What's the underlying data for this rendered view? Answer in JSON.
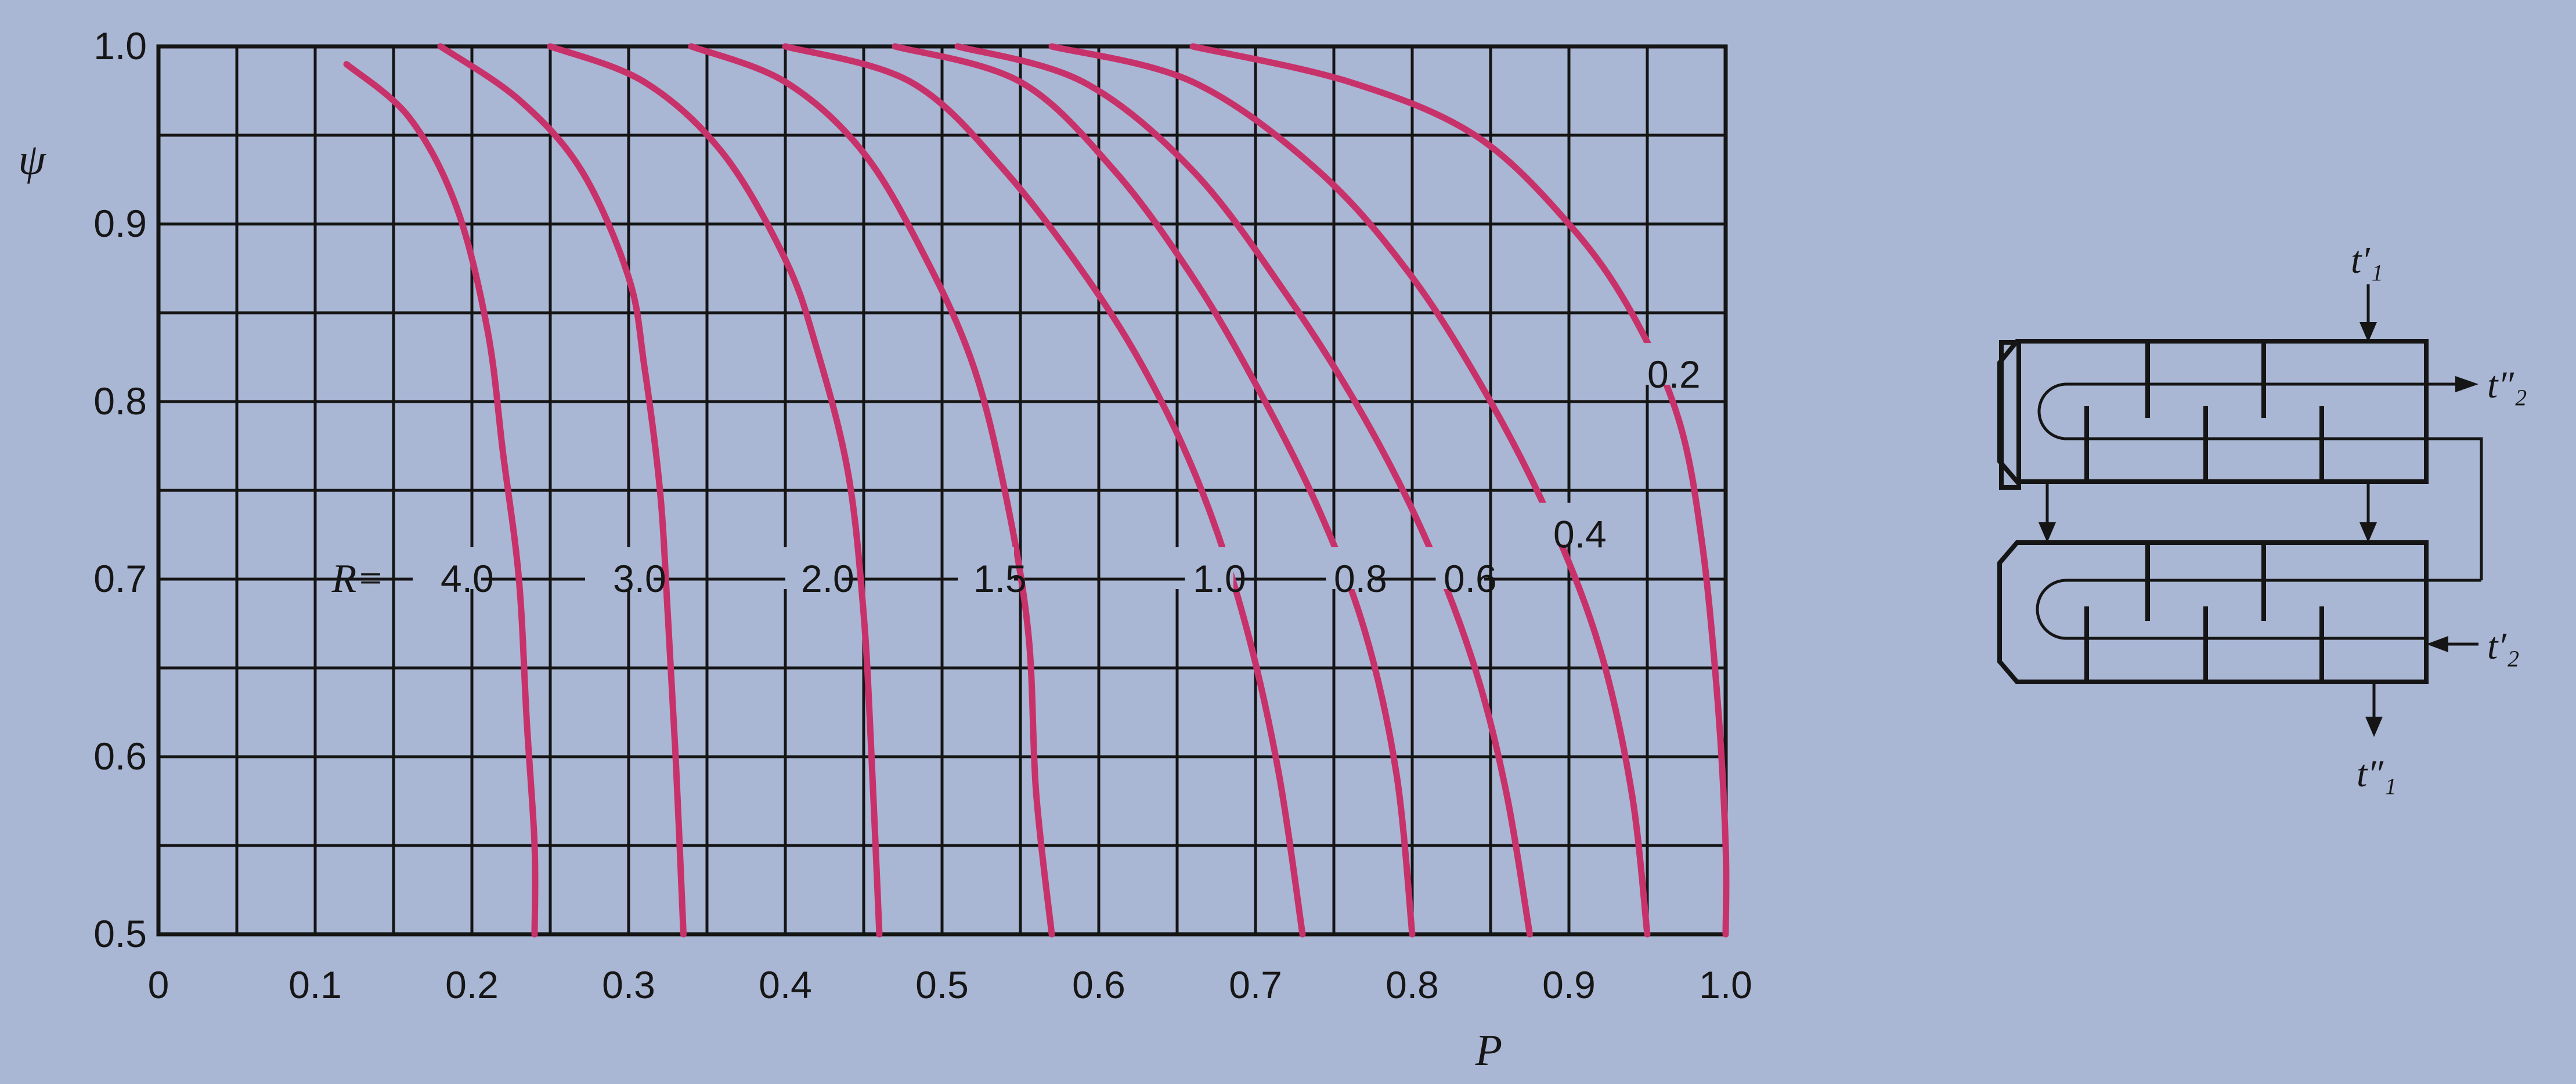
{
  "chart_data": {
    "type": "line",
    "xlabel": "P",
    "ylabel": "ψ",
    "xlim": [
      0,
      1.0
    ],
    "ylim": [
      0.5,
      1.0
    ],
    "x_ticks": [
      "0",
      "0.1",
      "0.2",
      "0.3",
      "0.4",
      "0.5",
      "0.6",
      "0.7",
      "0.8",
      "0.9",
      "1.0"
    ],
    "y_ticks": [
      "0.5",
      "0.6",
      "0.7",
      "0.8",
      "0.9",
      "1.0"
    ],
    "grid": true,
    "series_label_prefix": "R=",
    "series": [
      {
        "name": "4.0",
        "label": "4.0",
        "points": [
          [
            0.12,
            0.99
          ],
          [
            0.16,
            0.96
          ],
          [
            0.19,
            0.91
          ],
          [
            0.21,
            0.84
          ],
          [
            0.22,
            0.77
          ],
          [
            0.23,
            0.7
          ],
          [
            0.235,
            0.62
          ],
          [
            0.24,
            0.55
          ],
          [
            0.24,
            0.5
          ]
        ]
      },
      {
        "name": "3.0",
        "label": "3.0",
        "points": [
          [
            0.18,
            1.0
          ],
          [
            0.23,
            0.97
          ],
          [
            0.27,
            0.93
          ],
          [
            0.3,
            0.87
          ],
          [
            0.31,
            0.82
          ],
          [
            0.32,
            0.75
          ],
          [
            0.325,
            0.68
          ],
          [
            0.33,
            0.6
          ],
          [
            0.335,
            0.5
          ]
        ]
      },
      {
        "name": "2.0",
        "label": "2.0",
        "points": [
          [
            0.25,
            1.0
          ],
          [
            0.31,
            0.98
          ],
          [
            0.36,
            0.94
          ],
          [
            0.4,
            0.88
          ],
          [
            0.42,
            0.83
          ],
          [
            0.44,
            0.76
          ],
          [
            0.45,
            0.68
          ],
          [
            0.455,
            0.6
          ],
          [
            0.46,
            0.5
          ]
        ]
      },
      {
        "name": "1.5",
        "label": "1.5",
        "points": [
          [
            0.34,
            1.0
          ],
          [
            0.4,
            0.98
          ],
          [
            0.45,
            0.94
          ],
          [
            0.49,
            0.88
          ],
          [
            0.52,
            0.82
          ],
          [
            0.54,
            0.75
          ],
          [
            0.555,
            0.67
          ],
          [
            0.56,
            0.58
          ],
          [
            0.57,
            0.5
          ]
        ]
      },
      {
        "name": "1.0",
        "label": "1.0",
        "points": [
          [
            0.4,
            1.0
          ],
          [
            0.48,
            0.98
          ],
          [
            0.54,
            0.93
          ],
          [
            0.6,
            0.86
          ],
          [
            0.64,
            0.8
          ],
          [
            0.67,
            0.74
          ],
          [
            0.695,
            0.67
          ],
          [
            0.715,
            0.59
          ],
          [
            0.73,
            0.5
          ]
        ]
      },
      {
        "name": "0.8",
        "label": "0.8",
        "points": [
          [
            0.47,
            1.0
          ],
          [
            0.55,
            0.98
          ],
          [
            0.61,
            0.93
          ],
          [
            0.66,
            0.87
          ],
          [
            0.7,
            0.81
          ],
          [
            0.74,
            0.74
          ],
          [
            0.77,
            0.67
          ],
          [
            0.79,
            0.59
          ],
          [
            0.8,
            0.5
          ]
        ]
      },
      {
        "name": "0.6",
        "label": "0.6",
        "points": [
          [
            0.51,
            1.0
          ],
          [
            0.59,
            0.98
          ],
          [
            0.66,
            0.93
          ],
          [
            0.72,
            0.86
          ],
          [
            0.77,
            0.79
          ],
          [
            0.81,
            0.72
          ],
          [
            0.84,
            0.65
          ],
          [
            0.86,
            0.58
          ],
          [
            0.875,
            0.5
          ]
        ]
      },
      {
        "name": "0.4",
        "label": "0.4",
        "points": [
          [
            0.57,
            1.0
          ],
          [
            0.66,
            0.98
          ],
          [
            0.74,
            0.93
          ],
          [
            0.8,
            0.87
          ],
          [
            0.85,
            0.8
          ],
          [
            0.89,
            0.73
          ],
          [
            0.92,
            0.66
          ],
          [
            0.94,
            0.58
          ],
          [
            0.95,
            0.5
          ]
        ]
      },
      {
        "name": "0.2",
        "label": "0.2",
        "points": [
          [
            0.66,
            1.0
          ],
          [
            0.76,
            0.98
          ],
          [
            0.84,
            0.95
          ],
          [
            0.9,
            0.9
          ],
          [
            0.94,
            0.85
          ],
          [
            0.97,
            0.79
          ],
          [
            0.985,
            0.72
          ],
          [
            0.995,
            0.63
          ],
          [
            1.0,
            0.55
          ],
          [
            1.0,
            0.5
          ]
        ]
      }
    ]
  },
  "diagram": {
    "labels": {
      "t1_in": "t′₁",
      "t2_out": "t″₂",
      "t2_in": "t′₂",
      "t1_out": "t″₁"
    }
  }
}
